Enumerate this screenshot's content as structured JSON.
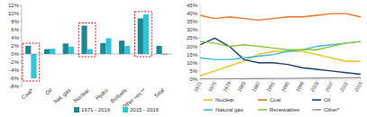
{
  "chart_data": [
    {
      "type": "bar",
      "categories": [
        "Coal*",
        "Oil",
        "Nat. gas",
        "Nuclear",
        "Hydro",
        "Biofuels",
        "Other ren.**",
        "Total"
      ],
      "series": [
        {
          "name": "1971 - 2016",
          "color": "#1f8591",
          "values": [
            2.0,
            1.2,
            2.6,
            7.0,
            2.7,
            3.3,
            8.8,
            2.0
          ]
        },
        {
          "name": "2015 - 2016",
          "color": "#2fc6d8",
          "values": [
            -6.0,
            1.3,
            1.8,
            1.2,
            3.9,
            2.0,
            9.8,
            -0.2
          ]
        }
      ],
      "ylim": [
        -8,
        12
      ],
      "yticks": [
        {
          "value": -8,
          "label": "-8%"
        },
        {
          "value": -6,
          "label": "-6%"
        },
        {
          "value": -4,
          "label": "-4%"
        },
        {
          "value": -2,
          "label": "-2%"
        },
        {
          "value": 0,
          "label": "0%"
        },
        {
          "value": 2,
          "label": "2%"
        },
        {
          "value": 4,
          "label": "4%"
        },
        {
          "value": 6,
          "label": "6%"
        },
        {
          "value": 8,
          "label": "8%"
        },
        {
          "value": 10,
          "label": "10%"
        },
        {
          "value": 12,
          "label": "12%"
        }
      ],
      "grid": false,
      "legend": "bottom"
    },
    {
      "type": "line",
      "x": [
        1971,
        1975,
        1979,
        1983,
        1987,
        1991,
        1995,
        1999,
        2003,
        2007,
        2011,
        2015
      ],
      "series": [
        {
          "name": "Nuclear",
          "color": "#e8c21c",
          "values": [
            2,
            5,
            8,
            11,
            15,
            17,
            17,
            17,
            15,
            13,
            11,
            11
          ]
        },
        {
          "name": "Coal",
          "color": "#e87722",
          "values": [
            39,
            37,
            38,
            37,
            36,
            37,
            38,
            38,
            39,
            40,
            40,
            38
          ]
        },
        {
          "name": "Oil",
          "color": "#1f3f6e",
          "values": [
            21,
            25,
            20,
            12,
            10,
            10,
            9,
            7,
            6,
            5,
            4,
            3
          ]
        },
        {
          "name": "Natural gas",
          "color": "#3fb8d8",
          "values": [
            13,
            12,
            12,
            13,
            14,
            15,
            17,
            18,
            20,
            21,
            22,
            23
          ]
        },
        {
          "name": "Renewables",
          "color": "#8cc63f",
          "values": [
            23,
            22,
            20,
            21,
            20,
            19,
            18,
            18,
            18,
            20,
            22,
            23
          ]
        },
        {
          "name": "Other*",
          "color": "#9a9a9a",
          "values": [
            0.2,
            0.2,
            0.3,
            0.3,
            0.4,
            0.5,
            0.5,
            0.6,
            0.7,
            0.8,
            0.9,
            1.0
          ]
        }
      ],
      "xlim": [
        1971,
        2015
      ],
      "xticks": [
        1971,
        1975,
        1979,
        1983,
        1987,
        1991,
        1995,
        1999,
        2003,
        2007,
        2011,
        2015
      ],
      "ylim": [
        0,
        45
      ],
      "yticks": [
        {
          "value": 0,
          "label": "0%"
        },
        {
          "value": 5,
          "label": "5%"
        },
        {
          "value": 10,
          "label": "10%"
        },
        {
          "value": 15,
          "label": "15%"
        },
        {
          "value": 20,
          "label": "20%"
        },
        {
          "value": 25,
          "label": "25%"
        },
        {
          "value": 30,
          "label": "30%"
        },
        {
          "value": 35,
          "label": "35%"
        },
        {
          "value": 40,
          "label": "40%"
        },
        {
          "value": 45,
          "label": "45%"
        }
      ],
      "grid": false,
      "legend": "bottom"
    }
  ]
}
